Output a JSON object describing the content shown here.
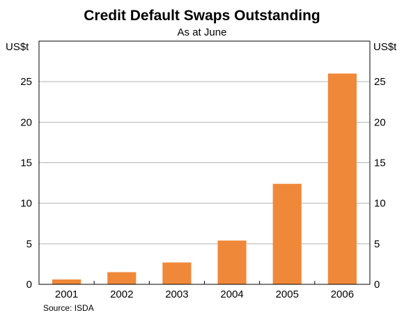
{
  "chart_data": {
    "type": "bar",
    "title": "Credit Default Swaps Outstanding",
    "subtitle": "As at June",
    "ylabel_left": "US$t",
    "ylabel_right": "US$t",
    "categories": [
      "2001",
      "2002",
      "2003",
      "2004",
      "2005",
      "2006"
    ],
    "values": [
      0.6,
      1.5,
      2.7,
      5.4,
      12.4,
      26.0
    ],
    "ylim": [
      0,
      30
    ],
    "yticks": [
      0,
      5,
      10,
      15,
      20,
      25
    ],
    "grid": true,
    "bar_color": "#F0883A",
    "source": "Source: ISDA"
  }
}
